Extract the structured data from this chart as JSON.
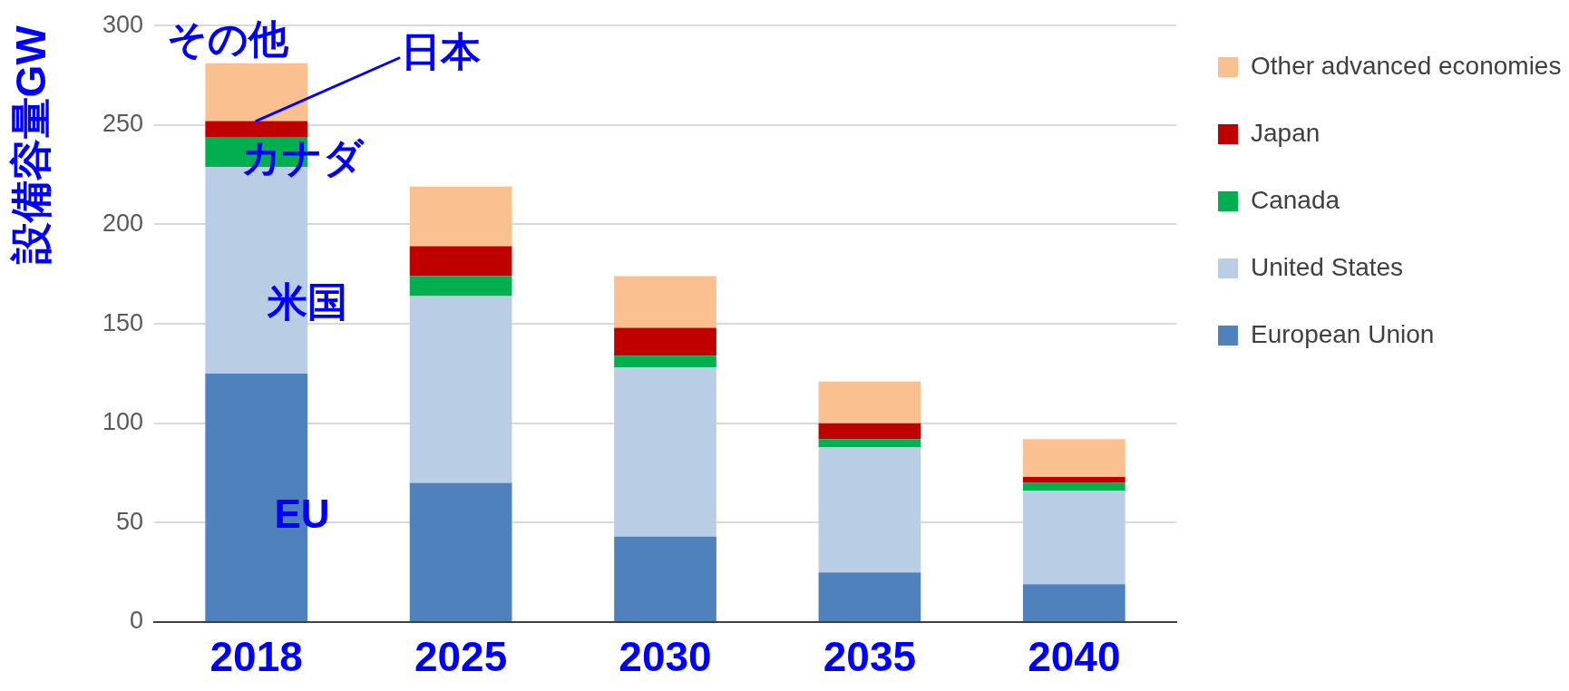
{
  "chart_data": {
    "type": "bar",
    "stacked": true,
    "ylabel": "設備容量GW",
    "categories": [
      "2018",
      "2025",
      "2030",
      "2035",
      "2040"
    ],
    "series": [
      {
        "name": "European Union",
        "color": "#4f81bd",
        "values": [
          125,
          70,
          43,
          25,
          19
        ]
      },
      {
        "name": "United States",
        "color": "#b9cde5",
        "values": [
          104,
          94,
          85,
          63,
          47
        ]
      },
      {
        "name": "Canada",
        "color": "#00b050",
        "values": [
          15,
          10,
          6,
          4,
          4
        ]
      },
      {
        "name": "Japan",
        "color": "#c00000",
        "values": [
          8,
          15,
          14,
          8,
          3
        ]
      },
      {
        "name": "Other advanced economies",
        "color": "#fac090",
        "values": [
          29,
          30,
          26,
          21,
          19
        ]
      }
    ],
    "ylim": [
      0,
      300
    ],
    "yticks": [
      0,
      50,
      100,
      150,
      200,
      250,
      300
    ],
    "grid": "y",
    "legend": "right",
    "annotations": [
      "その他",
      {
        "text": "日本",
        "x": "2018",
        "y": 252
      },
      "カナダ",
      "米国",
      "EU"
    ]
  }
}
